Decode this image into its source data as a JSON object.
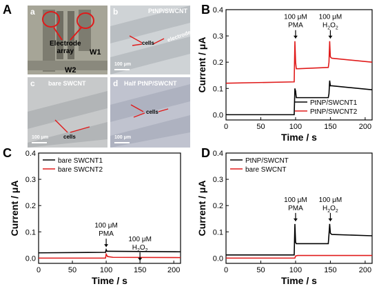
{
  "panel_labels": {
    "A": "A",
    "B": "B",
    "C": "C",
    "D": "D"
  },
  "micrographs": {
    "a": {
      "tag": "a",
      "electrode_array": "Electrode\narray",
      "w1": "W1",
      "w2": "W2"
    },
    "b": {
      "tag": "b",
      "title": "PtNP/SWCNT",
      "cells": "cells",
      "electrode": "electrode",
      "scale": "100 μm"
    },
    "c": {
      "tag": "c",
      "title": "bare SWCNT",
      "cells": "cells",
      "scale": "100 μm"
    },
    "d": {
      "tag": "d",
      "title": "Half PtNP/SWCNT",
      "cells": "cells",
      "scale": "100 μm"
    }
  },
  "chart_data": [
    {
      "panel": "B",
      "type": "line",
      "xlabel": "Time / s",
      "ylabel": "Current / μA",
      "xlim": [
        0,
        210
      ],
      "ylim": [
        -0.02,
        0.4
      ],
      "xticks": [
        0,
        50,
        100,
        150,
        200
      ],
      "yticks": [
        0.0,
        0.1,
        0.2,
        0.3,
        0.4
      ],
      "legend_position": "bottom-right",
      "annotations": [
        {
          "text": "100 μM",
          "text2": "PMA",
          "x": 100
        },
        {
          "text": "100 μM",
          "text2": "H2O2",
          "x": 150
        }
      ],
      "series": [
        {
          "name": "PtNP/SWCNT1",
          "color": "#000000",
          "x": [
            0,
            98,
            99,
            100,
            101,
            103,
            147,
            148,
            149,
            150,
            152,
            210
          ],
          "y": [
            0.0,
            0.0,
            0.1,
            0.09,
            0.065,
            0.065,
            0.065,
            0.08,
            0.13,
            0.11,
            0.11,
            0.095
          ]
        },
        {
          "name": "PtNP/SWCNT2",
          "color": "#e01a1a",
          "x": [
            0,
            98,
            99,
            100,
            101,
            104,
            147,
            148,
            149,
            150,
            152,
            210
          ],
          "y": [
            0.12,
            0.125,
            0.28,
            0.2,
            0.175,
            0.175,
            0.18,
            0.2,
            0.28,
            0.22,
            0.215,
            0.2
          ]
        }
      ]
    },
    {
      "panel": "C",
      "type": "line",
      "xlabel": "Time / s",
      "ylabel": "Current / μA",
      "xlim": [
        0,
        210
      ],
      "ylim": [
        -0.02,
        0.4
      ],
      "xticks": [
        0,
        50,
        100,
        150,
        200
      ],
      "yticks": [
        0.0,
        0.1,
        0.2,
        0.3,
        0.4
      ],
      "legend_position": "top-left",
      "annotations": [
        {
          "text": "100 μM",
          "text2": "PMA",
          "x": 100
        },
        {
          "text": "100 μM",
          "text2": "H2O2",
          "x": 150
        }
      ],
      "series": [
        {
          "name": "bare SWCNT1",
          "color": "#000000",
          "x": [
            0,
            99,
            100,
            101,
            103,
            210
          ],
          "y": [
            0.02,
            0.022,
            0.032,
            0.026,
            0.026,
            0.024
          ]
        },
        {
          "name": "bare SWCNT2",
          "color": "#e01a1a",
          "x": [
            0,
            99,
            100,
            102,
            110,
            210
          ],
          "y": [
            0.0,
            0.0,
            0.015,
            0.006,
            0.003,
            0.002
          ]
        }
      ]
    },
    {
      "panel": "D",
      "type": "line",
      "xlabel": "Time / s",
      "ylabel": "Current / μA",
      "xlim": [
        0,
        210
      ],
      "ylim": [
        -0.02,
        0.4
      ],
      "xticks": [
        0,
        50,
        100,
        150,
        200
      ],
      "yticks": [
        0.0,
        0.1,
        0.2,
        0.3,
        0.4
      ],
      "legend_position": "top-left",
      "annotations": [
        {
          "text": "100 μM",
          "text2": "PMA",
          "x": 100
        },
        {
          "text": "100 μM",
          "text2": "H2O2",
          "x": 150
        }
      ],
      "series": [
        {
          "name": "PtNP/SWCNT",
          "color": "#000000",
          "x": [
            0,
            98,
            99,
            100,
            101,
            103,
            147,
            148,
            149,
            150,
            152,
            210
          ],
          "y": [
            0.012,
            0.012,
            0.13,
            0.06,
            0.055,
            0.055,
            0.055,
            0.09,
            0.13,
            0.095,
            0.09,
            0.085
          ]
        },
        {
          "name": "bare SWCNT",
          "color": "#e01a1a",
          "x": [
            0,
            99,
            100,
            103,
            210
          ],
          "y": [
            0.0,
            0.0,
            0.008,
            0.01,
            0.01
          ]
        }
      ]
    }
  ]
}
